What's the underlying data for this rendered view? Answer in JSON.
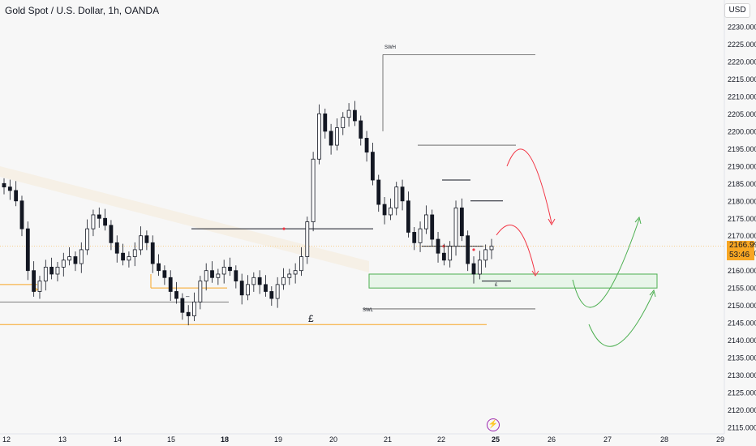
{
  "chart_title": "Gold Spot / U.S. Dollar, 1h, OANDA",
  "currency_button": "USD",
  "current_price": "2166.990",
  "countdown": "53:46",
  "event_icon": "lightning-icon",
  "colors": {
    "up_candle": "#131722",
    "down_candle": "#131722",
    "zone_green": "#4caf50",
    "zone_fill": "#e8f5e9",
    "arrow_red": "#f23645",
    "level_orange": "#f7a623",
    "structure_line": "#131722"
  },
  "annotations": {
    "swh": "SWH",
    "swl": "SWL",
    "currency_mark": "£",
    "small_mark": "£",
    "dash_mark": "–"
  },
  "chart_data": {
    "type": "candlestick",
    "y_ticks": [
      "2230.000",
      "2225.000",
      "2220.000",
      "2215.000",
      "2210.000",
      "2205.000",
      "2200.000",
      "2195.000",
      "2190.000",
      "2185.000",
      "2180.000",
      "2175.000",
      "2170.000",
      "2165.000",
      "2160.000",
      "2155.000",
      "2150.000",
      "2145.000",
      "2140.000",
      "2135.000",
      "2130.000",
      "2125.000",
      "2120.000",
      "2115.000"
    ],
    "x_ticks": [
      "12",
      "13",
      "14",
      "15",
      "18",
      "19",
      "20",
      "21",
      "22",
      "25",
      "26",
      "27",
      "28",
      "29"
    ],
    "y_range": [
      2113,
      2232
    ],
    "levels": {
      "swing_high": 2222,
      "swing_low": 2149,
      "demand_zone": [
        2155,
        2159
      ],
      "orange_level": 2144.5,
      "red_level": 2159.5
    },
    "closes": [
      2184,
      2183,
      2180,
      2172,
      2160,
      2154,
      2157,
      2161,
      2159,
      2161,
      2163,
      2164,
      2162,
      2166,
      2172,
      2176,
      2175,
      2173,
      2168,
      2165,
      2163,
      2164,
      2166,
      2170,
      2168,
      2162,
      2160,
      2158,
      2154,
      2152,
      2148,
      2147,
      2151,
      2157,
      2160,
      2158,
      2159,
      2161,
      2160,
      2157,
      2153,
      2156,
      2158,
      2156,
      2154,
      2152,
      2156,
      2158,
      2159,
      2160,
      2164,
      2174,
      2192,
      2205,
      2200,
      2196,
      2201,
      2204,
      2206,
      2203,
      2198,
      2194,
      2186,
      2179,
      2176,
      2178,
      2184,
      2180,
      2171,
      2168,
      2172,
      2176,
      2169,
      2165,
      2163,
      2167,
      2178,
      2170,
      2162,
      2159,
      2163,
      2166,
      2167
    ]
  }
}
